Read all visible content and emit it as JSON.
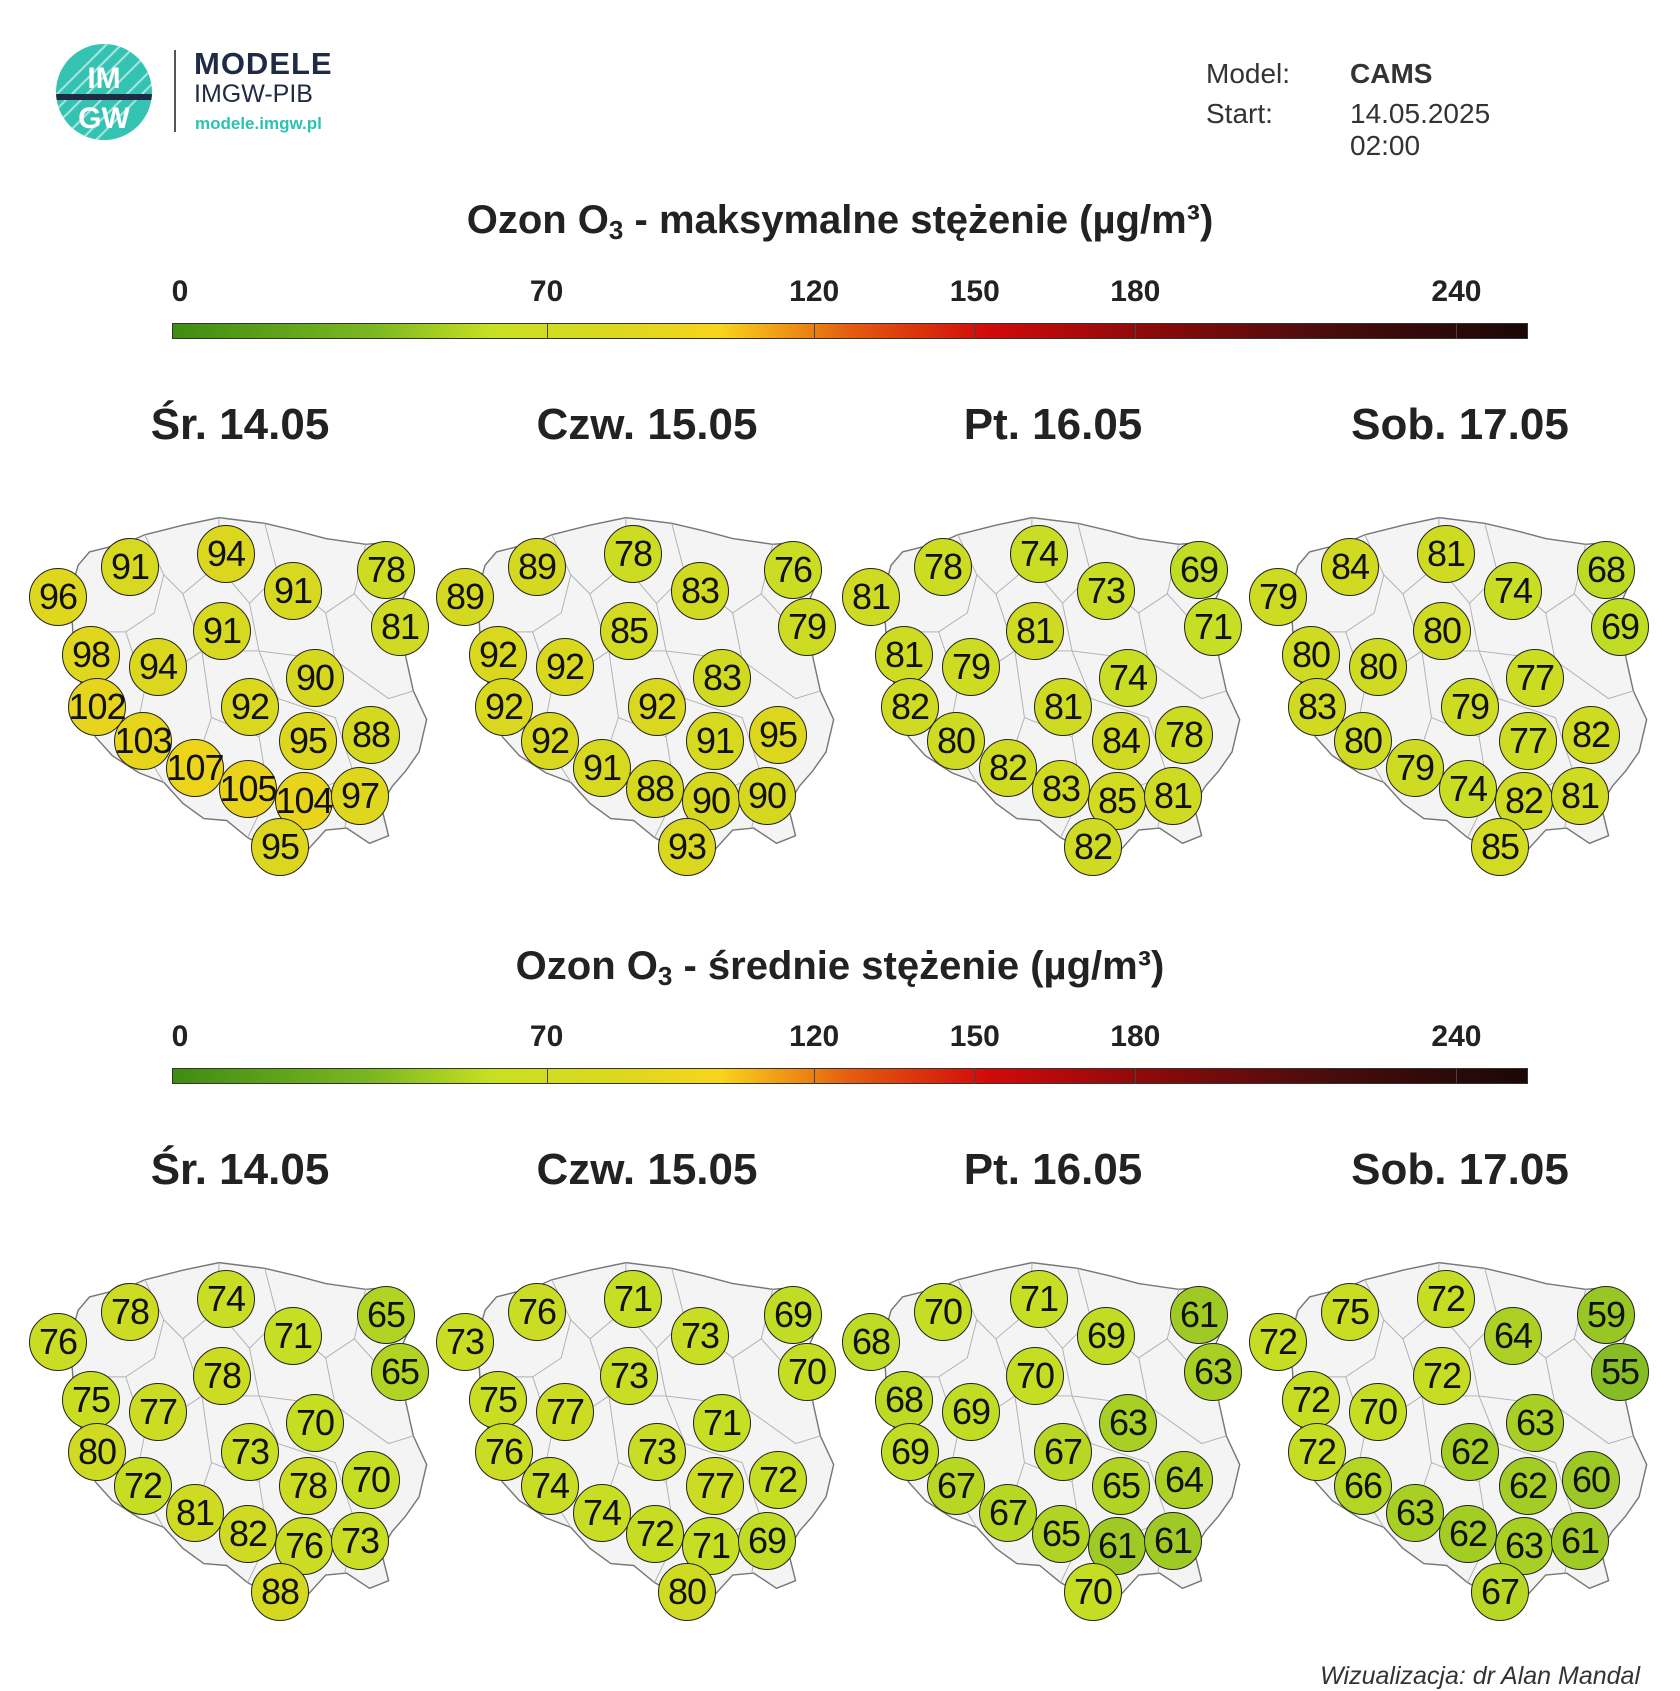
{
  "logo": {
    "initials": "IM GW",
    "title": "MODELE",
    "subtitle": "IMGW-PIB",
    "url": "modele.imgw.pl"
  },
  "info": {
    "model_label": "Model:",
    "model_value": "CAMS",
    "start_label": "Start:",
    "start_value": "14.05.2025 02:00"
  },
  "colors": {
    "bubble_scale": [
      {
        "value": 0,
        "color": "#3f8c12"
      },
      {
        "value": 55,
        "color": "#86bd25"
      },
      {
        "value": 70,
        "color": "#c5de24"
      },
      {
        "value": 90,
        "color": "#d6d820"
      },
      {
        "value": 107,
        "color": "#ecd41a"
      },
      {
        "value": 120,
        "color": "#f8d41c"
      },
      {
        "value": 150,
        "color": "#e35a10"
      },
      {
        "value": 180,
        "color": "#d10a0a"
      },
      {
        "value": 240,
        "color": "#4a0c0c"
      }
    ],
    "map_fill": "#f4f4f4",
    "map_border": "#b0b0b0"
  },
  "sections": [
    {
      "title_main": "Ozon O",
      "title_sub": "3",
      "title_rest": " - maksymalne stężenie (µg/m³)",
      "scale_ticks": [
        "0",
        "70",
        "120",
        "150",
        "180",
        "240"
      ],
      "days": [
        {
          "label": "Śr. 14.05",
          "values": [
            96,
            91,
            94,
            91,
            78,
            81,
            91,
            98,
            94,
            90,
            102,
            92,
            103,
            95,
            88,
            107,
            105,
            104,
            97,
            95
          ]
        },
        {
          "label": "Czw. 15.05",
          "values": [
            89,
            89,
            78,
            83,
            76,
            79,
            85,
            92,
            92,
            83,
            92,
            92,
            92,
            91,
            95,
            91,
            88,
            90,
            90,
            93
          ]
        },
        {
          "label": "Pt. 16.05",
          "values": [
            81,
            78,
            74,
            73,
            69,
            71,
            81,
            81,
            79,
            74,
            82,
            81,
            80,
            84,
            78,
            82,
            83,
            85,
            81,
            82
          ]
        },
        {
          "label": "Sob. 17.05",
          "values": [
            79,
            84,
            81,
            74,
            68,
            69,
            80,
            80,
            80,
            77,
            83,
            79,
            80,
            77,
            82,
            79,
            74,
            82,
            81,
            85
          ]
        }
      ]
    },
    {
      "title_main": "Ozon O",
      "title_sub": "3",
      "title_rest": " - średnie stężenie (µg/m³)",
      "scale_ticks": [
        "0",
        "70",
        "120",
        "150",
        "180",
        "240"
      ],
      "days": [
        {
          "label": "Śr. 14.05",
          "values": [
            76,
            78,
            74,
            71,
            65,
            65,
            78,
            75,
            77,
            70,
            80,
            73,
            72,
            78,
            70,
            81,
            82,
            76,
            73,
            88
          ]
        },
        {
          "label": "Czw. 15.05",
          "values": [
            73,
            76,
            71,
            73,
            69,
            70,
            73,
            75,
            77,
            71,
            76,
            73,
            74,
            77,
            72,
            74,
            72,
            71,
            69,
            80
          ]
        },
        {
          "label": "Pt. 16.05",
          "values": [
            68,
            70,
            71,
            69,
            61,
            63,
            70,
            68,
            69,
            63,
            69,
            67,
            67,
            65,
            64,
            67,
            65,
            61,
            61,
            70
          ]
        },
        {
          "label": "Sob. 17.05",
          "values": [
            72,
            75,
            72,
            64,
            59,
            55,
            72,
            72,
            70,
            63,
            72,
            62,
            66,
            62,
            60,
            63,
            62,
            63,
            61,
            67
          ]
        }
      ]
    }
  ],
  "credit": "Wizualizacja: dr Alan Mandal"
}
